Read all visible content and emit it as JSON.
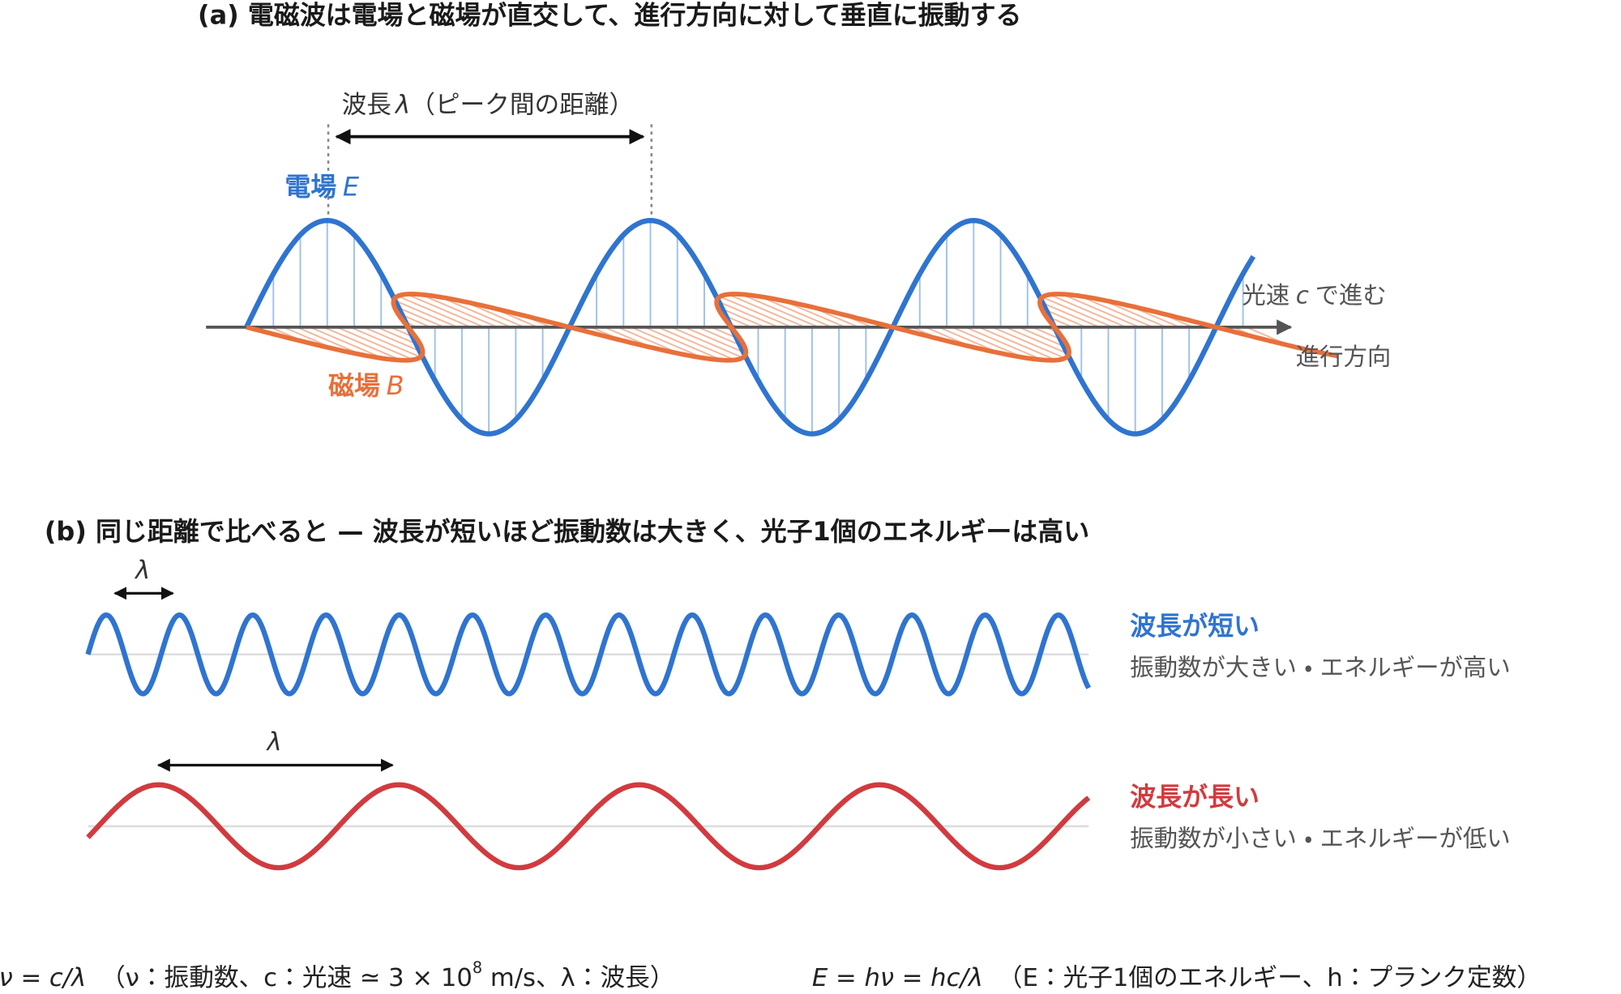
{
  "part_a": {
    "title": "(a) 電磁波は電場と磁場が直交して、進行方向に対して垂直に振動する",
    "wavelength_label": {
      "prefix": "波長",
      "symbol": "λ",
      "suffix": "（ピーク間の距離）"
    },
    "electric_field": {
      "name": "電場",
      "symbol": "E"
    },
    "magnetic_field": {
      "name": "磁場",
      "symbol": "B"
    },
    "speed_label": {
      "prefix": "光速",
      "symbol": "c",
      "suffix": "で進む"
    },
    "direction_label": "進行方向"
  },
  "part_b": {
    "title": "(b) 同じ距離で比べると — 波長が短いほど振動数は大きく、光子1個のエネルギーは高い",
    "short_wave": {
      "lambda": "λ",
      "heading": "波長が短い",
      "description": "振動数が大きい ・ エネルギーが高い"
    },
    "long_wave": {
      "lambda": "λ",
      "heading": "波長が長い",
      "description": "振動数が小さい ・ エネルギーが低い"
    }
  },
  "formulas": {
    "frequency": {
      "equation": "ν = c/λ",
      "note_start": "（ν：振動数、c：光速 ≃ 3 × 10",
      "note_sup": "8",
      "note_end": " m/s、λ：波長）"
    },
    "energy": {
      "equation": "E = hν = hc/λ",
      "note": "（E：光子1個のエネルギー、h：プランク定数）"
    }
  }
}
